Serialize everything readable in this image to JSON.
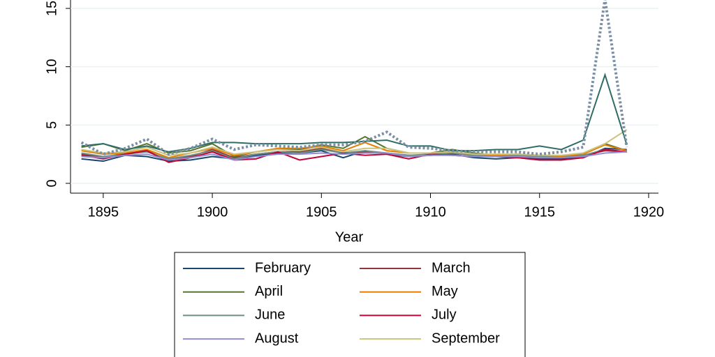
{
  "chart_data": {
    "type": "line",
    "x_label": "Year",
    "x": [
      1894,
      1895,
      1896,
      1897,
      1898,
      1899,
      1900,
      1901,
      1902,
      1903,
      1904,
      1905,
      1906,
      1907,
      1908,
      1909,
      1910,
      1911,
      1912,
      1913,
      1914,
      1915,
      1916,
      1917,
      1918,
      1919
    ],
    "xlim": [
      1893.5,
      1920.45
    ],
    "xticks": [
      1895,
      1900,
      1905,
      1910,
      1915,
      1920
    ],
    "ylim": [
      -0.84,
      15.72
    ],
    "yticks": [
      0,
      5,
      10,
      15
    ],
    "grid": true,
    "series": [
      {
        "name": "February",
        "color": "#1a476f",
        "values": [
          2.1,
          1.9,
          2.4,
          2.3,
          1.9,
          2.0,
          2.3,
          2.1,
          2.4,
          2.6,
          2.6,
          2.8,
          2.2,
          2.8,
          2.5,
          2.3,
          2.4,
          2.5,
          2.2,
          2.1,
          2.2,
          2.1,
          2.1,
          2.2,
          3.0,
          2.9
        ]
      },
      {
        "name": "March",
        "color": "#90353b",
        "values": [
          2.5,
          2.2,
          2.6,
          2.8,
          2.0,
          2.3,
          2.9,
          2.2,
          2.5,
          2.7,
          2.7,
          3.0,
          2.6,
          2.7,
          2.6,
          2.4,
          2.4,
          2.6,
          2.4,
          2.3,
          2.3,
          2.2,
          2.2,
          2.4,
          2.8,
          2.7
        ]
      },
      {
        "name": "April",
        "color": "#55752f",
        "values": [
          3.1,
          3.4,
          2.8,
          3.4,
          2.6,
          2.8,
          3.4,
          2.3,
          2.7,
          2.9,
          2.9,
          3.3,
          3.0,
          4.0,
          3.0,
          2.6,
          2.6,
          2.9,
          2.6,
          2.4,
          2.5,
          2.4,
          2.3,
          2.5,
          3.4,
          2.8
        ]
      },
      {
        "name": "May",
        "color": "#e37e00",
        "values": [
          2.8,
          2.5,
          2.6,
          2.9,
          2.2,
          2.6,
          3.0,
          2.4,
          2.7,
          3.0,
          3.0,
          3.2,
          2.8,
          3.5,
          2.8,
          2.6,
          2.6,
          2.7,
          2.5,
          2.4,
          2.4,
          2.3,
          2.3,
          2.5,
          3.3,
          2.8
        ]
      },
      {
        "name": "June",
        "color": "#6e8e84",
        "values": [
          2.6,
          2.3,
          2.5,
          2.7,
          2.1,
          2.4,
          2.8,
          2.1,
          2.5,
          2.7,
          2.6,
          2.9,
          2.6,
          2.8,
          2.6,
          2.4,
          2.5,
          2.6,
          2.4,
          2.3,
          2.4,
          2.3,
          2.2,
          2.4,
          2.9,
          2.7
        ]
      },
      {
        "name": "July",
        "color": "#c10534",
        "values": [
          2.4,
          2.1,
          2.5,
          2.8,
          1.8,
          2.2,
          2.7,
          2.0,
          2.1,
          2.7,
          2.0,
          2.3,
          2.6,
          2.4,
          2.5,
          2.1,
          2.5,
          2.4,
          2.3,
          2.3,
          2.2,
          2.0,
          2.0,
          2.2,
          2.9,
          2.7
        ]
      },
      {
        "name": "August",
        "color": "#938dd2",
        "values": [
          2.3,
          2.2,
          2.4,
          2.5,
          2.0,
          2.2,
          2.5,
          2.0,
          2.3,
          2.5,
          2.5,
          2.6,
          2.5,
          2.6,
          2.6,
          2.3,
          2.4,
          2.4,
          2.3,
          2.3,
          2.3,
          2.2,
          2.2,
          2.3,
          2.6,
          2.7
        ]
      },
      {
        "name": "September",
        "color": "#cac27e",
        "values": [
          2.9,
          2.6,
          2.7,
          3.1,
          2.4,
          2.6,
          3.1,
          2.5,
          2.7,
          2.9,
          2.8,
          3.1,
          2.7,
          3.0,
          3.0,
          2.6,
          2.6,
          2.7,
          2.5,
          2.5,
          2.5,
          2.4,
          2.4,
          2.6,
          3.4,
          4.6
        ]
      },
      {
        "color": "#2d6d66",
        "values": [
          3.2,
          3.4,
          2.9,
          3.2,
          2.7,
          3.0,
          3.5,
          3.5,
          3.4,
          3.4,
          3.4,
          3.5,
          3.5,
          3.6,
          3.7,
          3.2,
          3.2,
          2.8,
          2.8,
          2.9,
          2.9,
          3.2,
          2.9,
          3.7,
          9.3,
          3.3
        ]
      },
      {
        "color": "#7a8fa6",
        "dash": true,
        "values": [
          3.5,
          2.5,
          3.0,
          3.8,
          2.5,
          3.0,
          3.8,
          2.9,
          3.3,
          3.2,
          3.1,
          3.3,
          3.3,
          3.6,
          4.4,
          3.1,
          3.0,
          2.8,
          2.7,
          2.7,
          2.7,
          2.5,
          2.7,
          3.1,
          15.8,
          3.1
        ]
      }
    ]
  }
}
